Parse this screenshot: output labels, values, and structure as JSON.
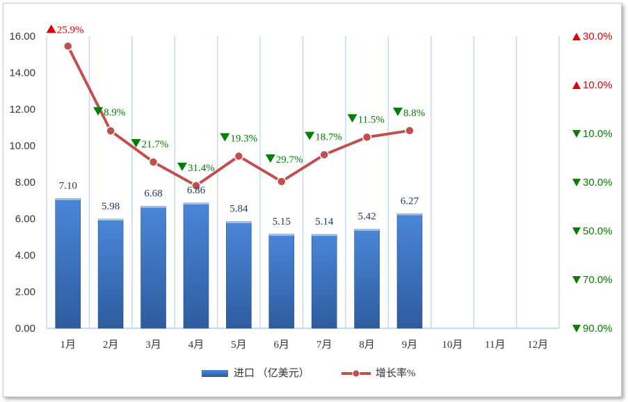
{
  "chart_data": {
    "type": "bar",
    "categories": [
      "1月",
      "2月",
      "3月",
      "4月",
      "5月",
      "6月",
      "7月",
      "8月",
      "9月",
      "10月",
      "11月",
      "12月"
    ],
    "series": [
      {
        "name": "进口（亿美元）",
        "type": "bar",
        "values": [
          7.1,
          5.98,
          6.68,
          6.86,
          5.84,
          5.15,
          5.14,
          5.42,
          6.27,
          null,
          null,
          null
        ]
      },
      {
        "name": "增长率%",
        "type": "line",
        "axis": "right",
        "values": [
          25.9,
          -8.9,
          -21.7,
          -31.4,
          -19.3,
          -29.7,
          -18.7,
          -11.5,
          -8.8,
          null,
          null,
          null
        ]
      }
    ],
    "bar_labels": [
      "7.10",
      "5.98",
      "6.68",
      "6.86",
      "5.84",
      "5.15",
      "5.14",
      "5.42",
      "6.27"
    ],
    "rate_labels": [
      "25.9%",
      "8.9%",
      "21.7%",
      "31.4%",
      "19.3%",
      "29.7%",
      "18.7%",
      "11.5%",
      "8.8%"
    ],
    "y_left": {
      "ylim": [
        0,
        16
      ],
      "ticks": [
        "0.00",
        "2.00",
        "4.00",
        "6.00",
        "8.00",
        "10.00",
        "12.00",
        "14.00",
        "16.00"
      ]
    },
    "y_right": {
      "ylim": [
        -90,
        30
      ],
      "ticks": [
        "30.0%",
        "10.0%",
        "10.0%",
        "30.0%",
        "50.0%",
        "70.0%",
        "90.0%"
      ],
      "tick_values": [
        30,
        10,
        -10,
        -30,
        -50,
        -70,
        -90
      ]
    },
    "legend": {
      "placement": "bottom",
      "items": [
        "进口 （亿美元）",
        "增长率%"
      ]
    },
    "grid": "vertical",
    "colors": {
      "bar": "#3c73c2",
      "line": "#c0504d",
      "up": "#e00000",
      "down": "#008000",
      "grid": "#c6d9f1"
    }
  }
}
